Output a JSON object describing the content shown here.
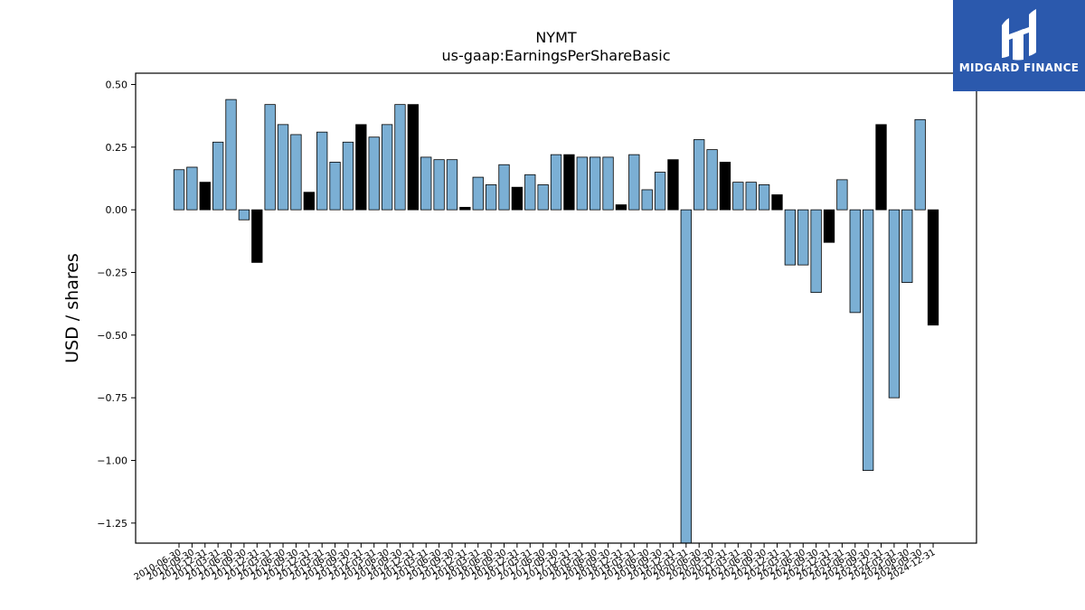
{
  "chart_data": {
    "type": "bar",
    "title": "NYMT",
    "subtitle": "us-gaap:EarningsPerShareBasic",
    "xlabel": "",
    "ylabel": "USD / shares",
    "ylim": [
      -1.33,
      0.545
    ],
    "yticks": [
      0.5,
      0.25,
      0.0,
      -0.25,
      -0.5,
      -0.75,
      -1.0,
      -1.25
    ],
    "ytick_labels": [
      "0.50",
      "0.25",
      "0.00",
      "−0.25",
      "−0.50",
      "−0.75",
      "−1.00",
      "−1.25"
    ],
    "grid": false,
    "legend": "none",
    "colors": {
      "quarter": "#7bafd4",
      "annual": "#000000",
      "edge": "#000000"
    },
    "tick_labels": [
      "2010-06-30",
      "2010-09-30",
      "2010-12-31",
      "2011-03-31",
      "2011-06-30",
      "2011-09-30",
      "2011-12-31",
      "2012-03-31",
      "2012-06-30",
      "2012-09-30",
      "2012-12-31",
      "2013-03-31",
      "2013-06-30",
      "2013-09-30",
      "2013-12-31",
      "2014-03-31",
      "2014-06-30",
      "2014-09-30",
      "2014-12-31",
      "2015-03-31",
      "2015-06-30",
      "2015-09-30",
      "2015-12-31",
      "2016-03-31",
      "2016-06-30",
      "2016-09-30",
      "2016-12-31",
      "2017-03-31",
      "2017-06-30",
      "2017-09-30",
      "2017-12-31",
      "2018-03-31",
      "2018-06-30",
      "2018-09-30",
      "2018-12-31",
      "2019-03-31",
      "2019-06-30",
      "2019-09-30",
      "2019-12-31",
      "2020-03-31",
      "2020-06-30",
      "2020-09-30",
      "2020-12-31",
      "2021-03-31",
      "2021-06-30",
      "2021-09-30",
      "2021-12-31",
      "2022-03-31",
      "2022-06-30",
      "2022-09-30",
      "2022-12-31",
      "2023-03-31",
      "2023-06-30",
      "2023-09-30",
      "2023-12-31",
      "2024-03-31",
      "2024-06-30",
      "2024-09-30",
      "2024-12-31"
    ],
    "values": [
      0.16,
      0.17,
      0.11,
      0.27,
      0.44,
      -0.04,
      -0.21,
      0.42,
      0.34,
      0.3,
      0.07,
      0.31,
      0.19,
      0.27,
      0.34,
      0.29,
      0.34,
      0.42,
      0.42,
      0.21,
      0.2,
      0.2,
      0.01,
      0.13,
      0.1,
      0.18,
      0.09,
      0.14,
      0.1,
      0.22,
      0.22,
      0.21,
      0.21,
      0.21,
      0.02,
      0.22,
      0.08,
      0.15,
      0.2,
      -1.4,
      0.28,
      0.24,
      0.19,
      0.11,
      0.11,
      0.1,
      0.06,
      -0.22,
      -0.22,
      -0.33,
      -0.13,
      0.12,
      -0.41,
      -1.04,
      0.34,
      -0.75,
      -0.29,
      0.36,
      -0.46
    ],
    "annual": [
      0,
      0,
      1,
      0,
      0,
      0,
      1,
      0,
      0,
      0,
      1,
      0,
      0,
      0,
      1,
      0,
      0,
      0,
      1,
      0,
      0,
      0,
      1,
      0,
      0,
      0,
      1,
      0,
      0,
      0,
      1,
      0,
      0,
      0,
      1,
      0,
      0,
      0,
      1,
      0,
      0,
      0,
      1,
      0,
      0,
      0,
      1,
      0,
      0,
      0,
      1,
      0,
      0,
      0,
      1,
      0,
      0,
      0,
      1
    ]
  },
  "logo": {
    "text": "MIDGARD FINANCE"
  }
}
